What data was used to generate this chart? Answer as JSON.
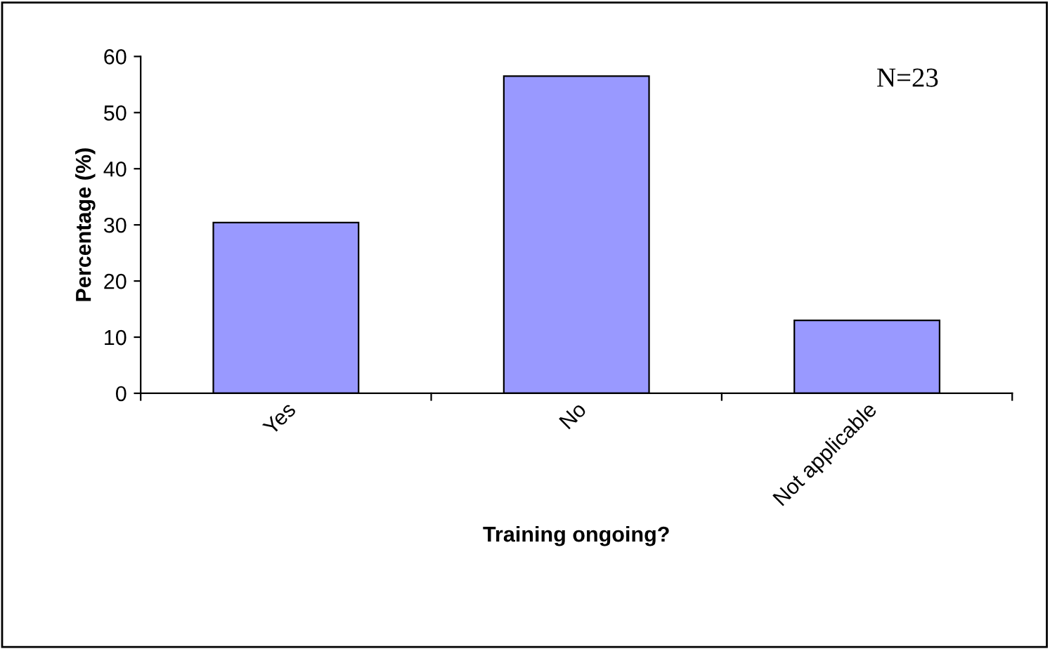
{
  "chart_data": {
    "type": "bar",
    "xlabel": "Training ongoing?",
    "ylabel": "Percentage (%)",
    "categories": [
      "Yes",
      "No",
      "Not applicable"
    ],
    "values": [
      30.4,
      56.5,
      13.0
    ],
    "color": "#9999ff",
    "ylim": [
      0,
      60
    ],
    "yticks": [
      0,
      10,
      20,
      30,
      40,
      50,
      60
    ],
    "grid": false,
    "legend": false,
    "annotations": [
      "N=23"
    ]
  }
}
